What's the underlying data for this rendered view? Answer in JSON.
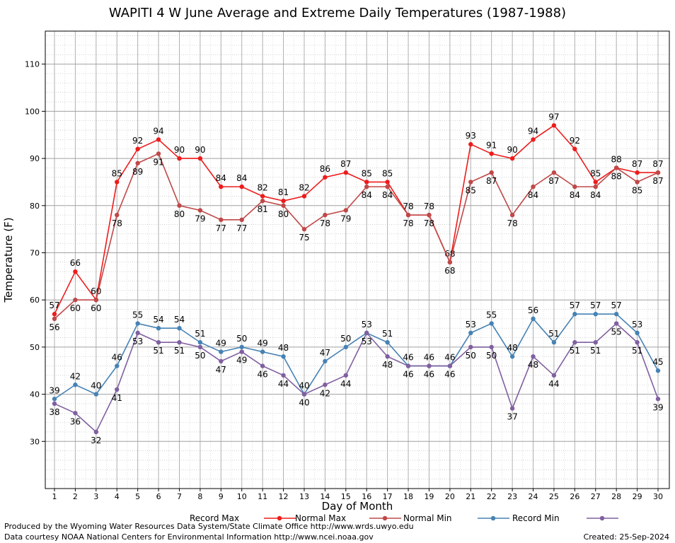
{
  "chart_data": {
    "type": "line",
    "title": "WAPITI 4 W June Average and Extreme Daily Temperatures (1987-1988)",
    "xlabel": "Day of Month",
    "ylabel": "Temperature (F)",
    "x": [
      1,
      2,
      3,
      4,
      5,
      6,
      7,
      8,
      9,
      10,
      11,
      12,
      13,
      14,
      15,
      16,
      17,
      18,
      19,
      20,
      21,
      22,
      23,
      24,
      25,
      26,
      27,
      28,
      29,
      30
    ],
    "xlim": [
      1,
      30
    ],
    "ylim": [
      20,
      117
    ],
    "yticks": [
      30,
      40,
      50,
      60,
      70,
      80,
      90,
      100,
      110
    ],
    "grid": true,
    "legend_position": "bottom",
    "series": [
      {
        "name": "Record Max",
        "color": "#ee1c1c",
        "values": [
          57,
          66,
          60,
          85,
          92,
          94,
          90,
          90,
          84,
          84,
          82,
          81,
          82,
          86,
          87,
          85,
          85,
          78,
          78,
          68,
          93,
          91,
          90,
          94,
          97,
          92,
          85,
          88,
          87,
          87
        ]
      },
      {
        "name": "Normal Max",
        "color": "#c04848",
        "values": [
          56,
          60,
          60,
          78,
          89,
          91,
          80,
          79,
          77,
          77,
          81,
          80,
          75,
          78,
          79,
          84,
          84,
          78,
          78,
          68,
          85,
          87,
          78,
          84,
          87,
          84,
          84,
          88,
          85,
          87
        ]
      },
      {
        "name": "Normal Min",
        "color": "#4682b4",
        "values": [
          39,
          42,
          40,
          46,
          55,
          54,
          54,
          51,
          49,
          50,
          49,
          48,
          40,
          47,
          50,
          53,
          51,
          46,
          46,
          46,
          53,
          55,
          48,
          56,
          51,
          57,
          57,
          57,
          53,
          45
        ]
      },
      {
        "name": "Record Min",
        "color": "#8060a0",
        "values": [
          38,
          36,
          32,
          41,
          53,
          51,
          51,
          50,
          47,
          49,
          46,
          44,
          40,
          42,
          44,
          53,
          48,
          46,
          46,
          46,
          50,
          50,
          37,
          48,
          44,
          51,
          51,
          55,
          51,
          39
        ]
      }
    ]
  },
  "footer": {
    "produced_by": "Produced by the Wyoming Water Resources Data System/State Climate Office http://www.wrds.uwyo.edu",
    "courtesy": "Data courtesy NOAA National Centers for Environmental Information http://www.ncei.noaa.gov",
    "created": "Created:  25-Sep-2024"
  }
}
